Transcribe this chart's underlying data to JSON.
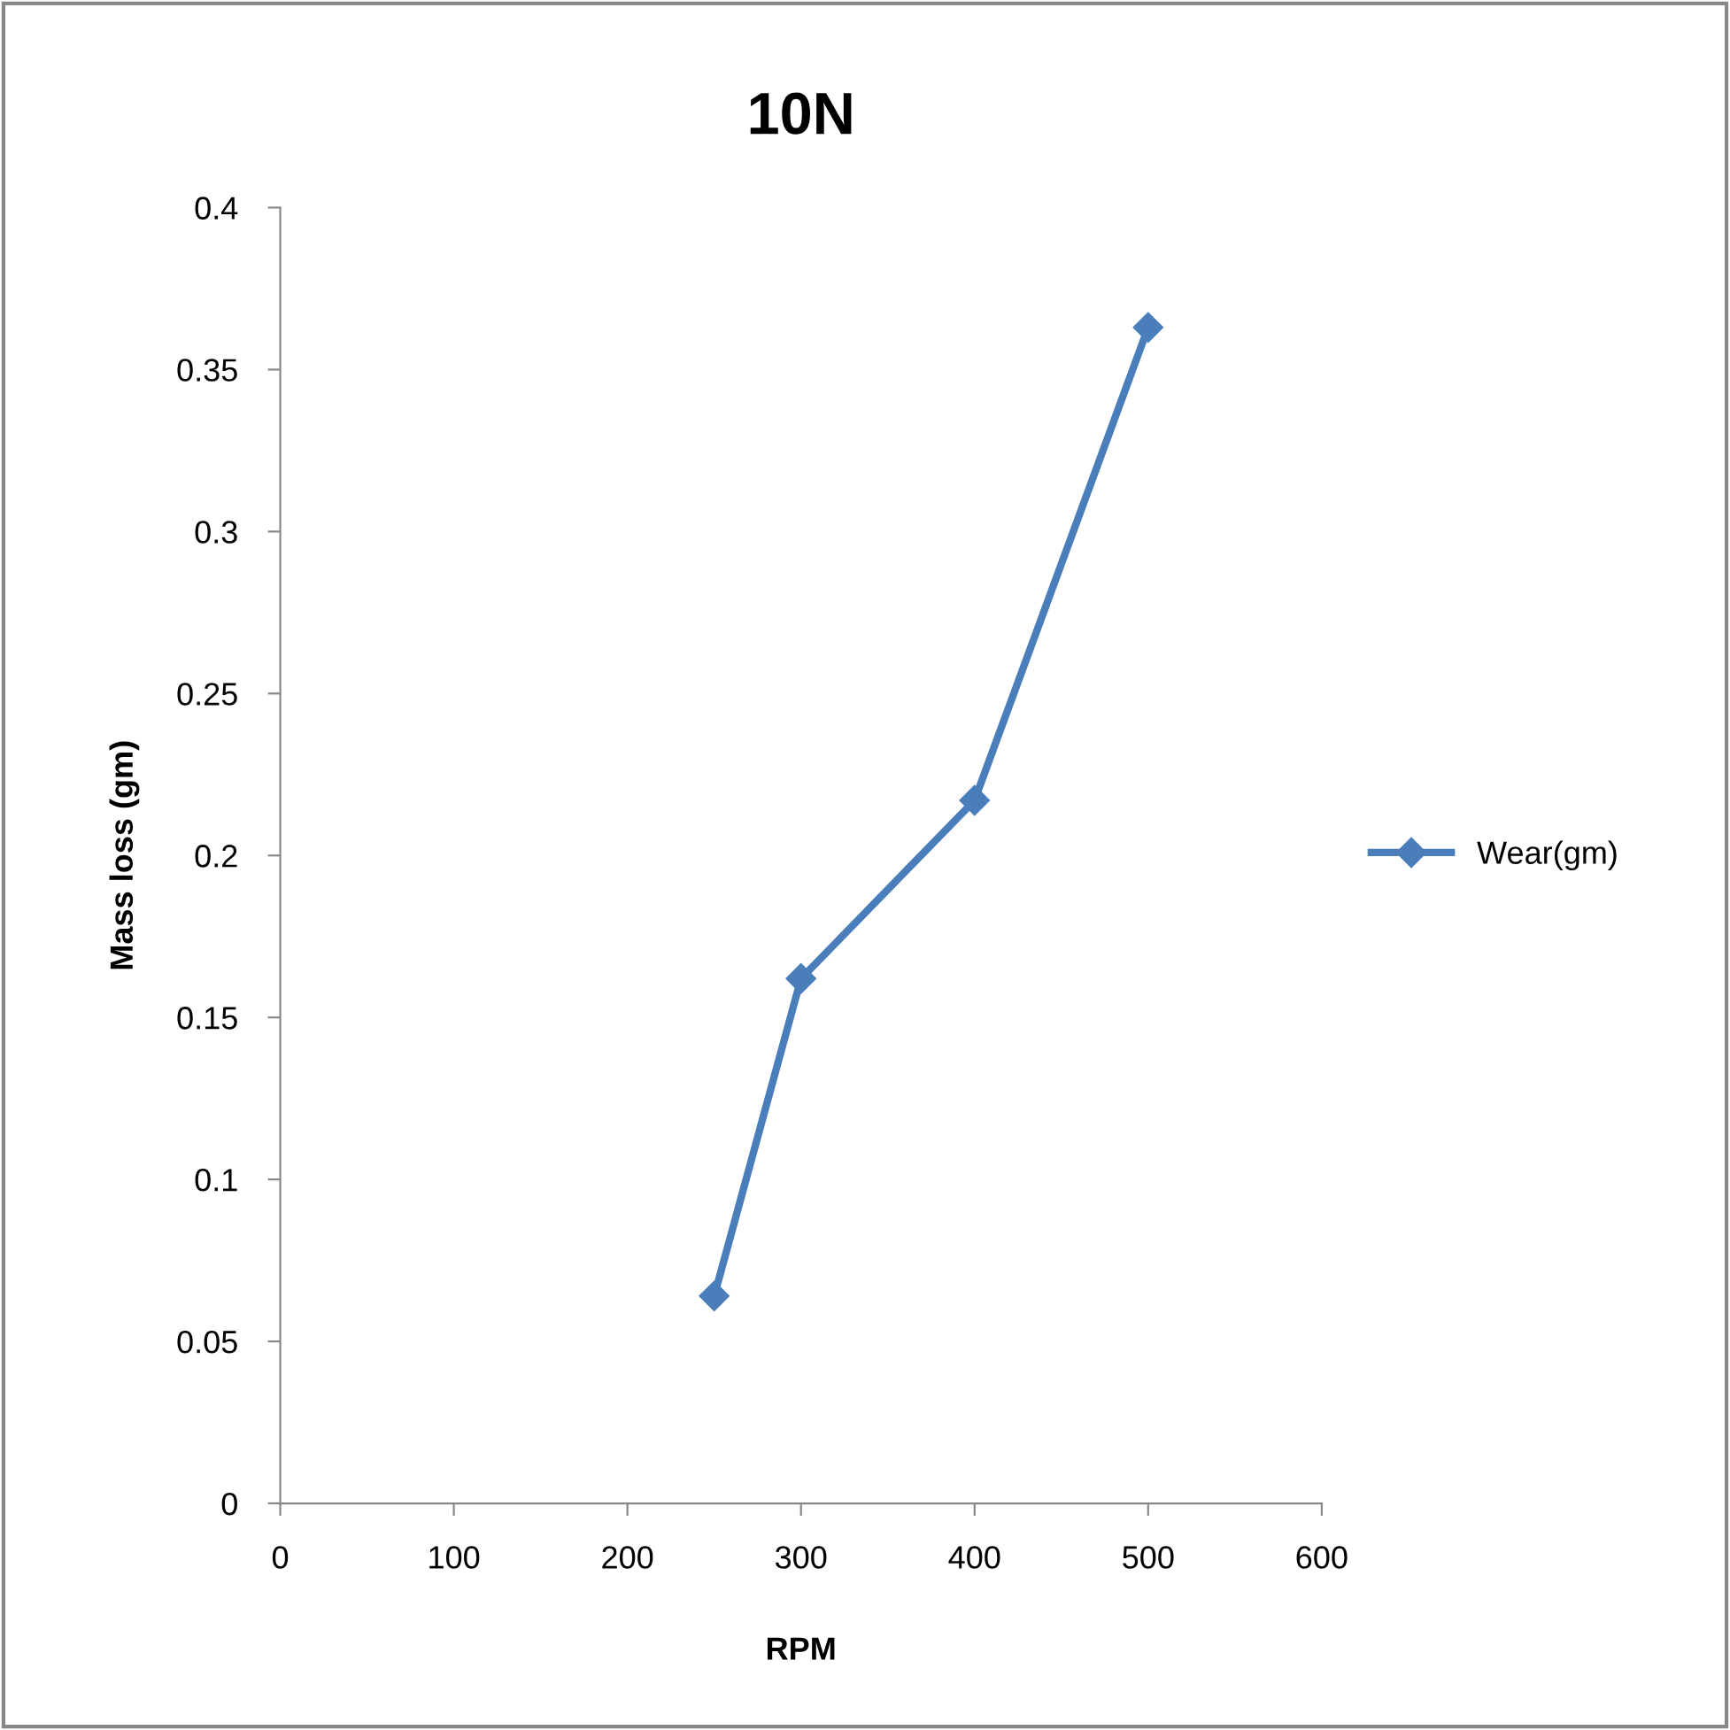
{
  "chart_data": {
    "type": "line",
    "title": "10N",
    "xlabel": "RPM",
    "ylabel": "Mass loss (gm)",
    "x": [
      250,
      300,
      400,
      500
    ],
    "series": [
      {
        "name": "Wear(gm)",
        "color": "#4a7ebb",
        "values": [
          0.064,
          0.162,
          0.217,
          0.363
        ]
      }
    ],
    "xlim": [
      0,
      600
    ],
    "xticks": [
      0,
      100,
      200,
      300,
      400,
      500,
      600
    ],
    "ylim": [
      0,
      0.4
    ],
    "yticks": [
      0,
      0.05,
      0.1,
      0.15,
      0.2,
      0.25,
      0.3,
      0.35,
      0.4
    ],
    "marker": "diamond",
    "line_style": "solid",
    "grid": false,
    "legend": "right"
  }
}
